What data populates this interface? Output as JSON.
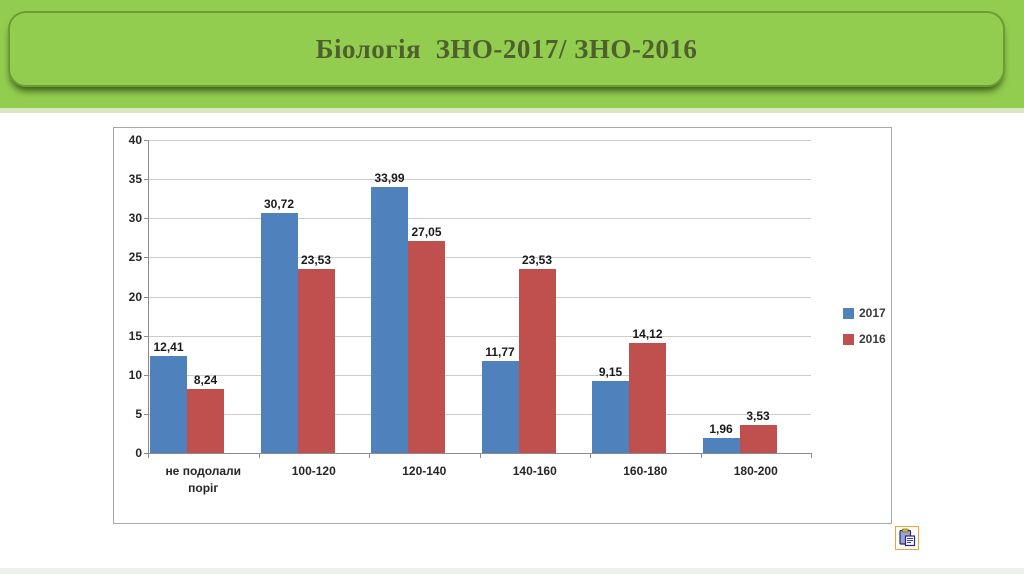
{
  "slide": {
    "title": "Біологія  ЗНО-2017/ ЗНО-2016"
  },
  "colors": {
    "header_green": "#92cd50",
    "header_border_green": "#6d9b36",
    "title_text": "#4f602e",
    "series_2017_blue": "#4f81bd",
    "series_2016_red": "#c0504d",
    "gridline": "#cccccc",
    "axis": "#8c8c8c",
    "chart_border": "#a8a8a8",
    "paste_button_border": "#eda33f"
  },
  "chart_data": {
    "type": "bar",
    "title": "",
    "xlabel": "",
    "ylabel": "",
    "categories": [
      "не подолали\nпоріг",
      "100-120",
      "120-140",
      "140-160",
      "160-180",
      "180-200"
    ],
    "series": [
      {
        "name": "2017",
        "color": "#4f81bd",
        "values": [
          12.41,
          30.72,
          33.99,
          11.77,
          9.15,
          1.96
        ],
        "labels": [
          "12,41",
          "30,72",
          "33,99",
          "11,77",
          "9,15",
          "1,96"
        ]
      },
      {
        "name": "2016",
        "color": "#c0504d",
        "values": [
          8.24,
          23.53,
          27.05,
          23.53,
          14.12,
          3.53
        ],
        "labels": [
          "8,24",
          "23,53",
          "27,05",
          "23,53",
          "14,12",
          "3,53"
        ]
      }
    ],
    "ylim": [
      0,
      40
    ],
    "ytick_step": 5,
    "yticks": [
      "0",
      "5",
      "10",
      "15",
      "20",
      "25",
      "30",
      "35",
      "40"
    ],
    "grid": true,
    "legend_position": "right",
    "decimal_separator": ","
  },
  "paste_button": {
    "tooltip_glyph": "clipboard"
  }
}
